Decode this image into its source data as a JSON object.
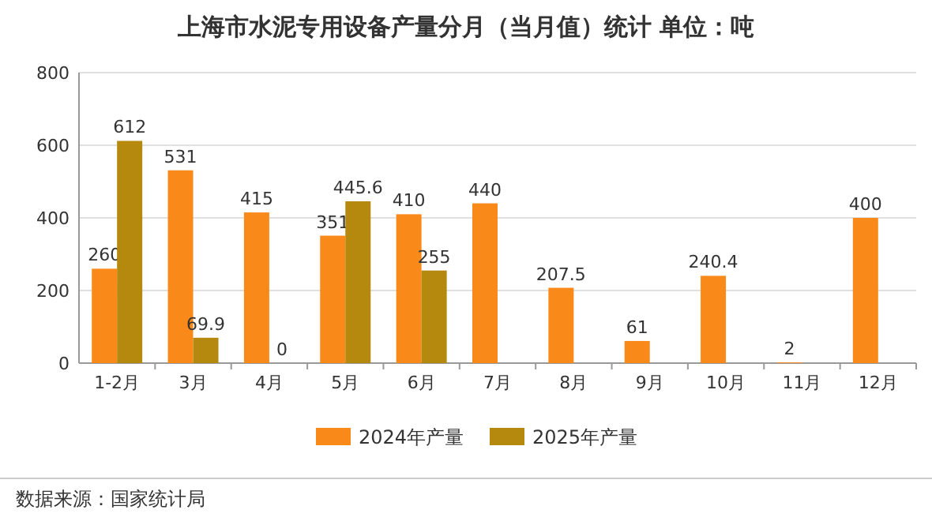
{
  "chart_data": {
    "type": "bar",
    "title": "上海市水泥专用设备产量分月（当月值）统计  单位：吨",
    "categories": [
      "1-2月",
      "3月",
      "4月",
      "5月",
      "6月",
      "7月",
      "8月",
      "9月",
      "10月",
      "11月",
      "12月"
    ],
    "series": [
      {
        "name": "2024年产量",
        "color": "#f98a1a",
        "values": [
          260,
          531,
          415,
          351,
          410,
          440,
          207.5,
          61,
          240.4,
          2,
          400
        ]
      },
      {
        "name": "2025年产量",
        "color": "#b5880e",
        "values": [
          612,
          69.9,
          0,
          445.6,
          255,
          null,
          null,
          null,
          null,
          null,
          null
        ]
      }
    ],
    "ylim": [
      0,
      800
    ],
    "yticks": [
      0,
      200,
      400,
      600,
      800
    ],
    "grid": "y",
    "legend": "bottom",
    "data_labels": true,
    "annotations": [
      "数据来源：国家统计局"
    ]
  }
}
